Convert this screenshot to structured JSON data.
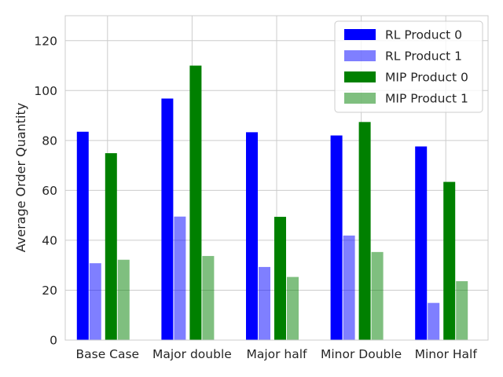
{
  "chart_data": {
    "type": "bar",
    "categories": [
      "Base Case",
      "Major double",
      "Major half",
      "Minor Double",
      "Minor Half"
    ],
    "series": [
      {
        "name": "RL Product 0",
        "color": "#0000ff",
        "opacity": 1.0,
        "values": [
          83.5,
          96.8,
          83.3,
          82.0,
          77.6
        ]
      },
      {
        "name": "RL Product 1",
        "color": "#0000ff",
        "opacity": 0.5,
        "values": [
          30.8,
          49.5,
          29.3,
          41.9,
          14.9
        ]
      },
      {
        "name": "MIP Product 0",
        "color": "#008000",
        "opacity": 1.0,
        "values": [
          74.9,
          110.0,
          49.4,
          87.4,
          63.4
        ]
      },
      {
        "name": "MIP Product 1",
        "color": "#008000",
        "opacity": 0.5,
        "values": [
          32.2,
          33.7,
          25.3,
          35.3,
          23.6
        ]
      }
    ],
    "ylabel": "Average Order Quantity",
    "xlabel": "",
    "ylim": [
      0,
      130
    ],
    "yticks": [
      0,
      20,
      40,
      60,
      80,
      100,
      120
    ],
    "grid": true,
    "legend_position": "top-right"
  }
}
